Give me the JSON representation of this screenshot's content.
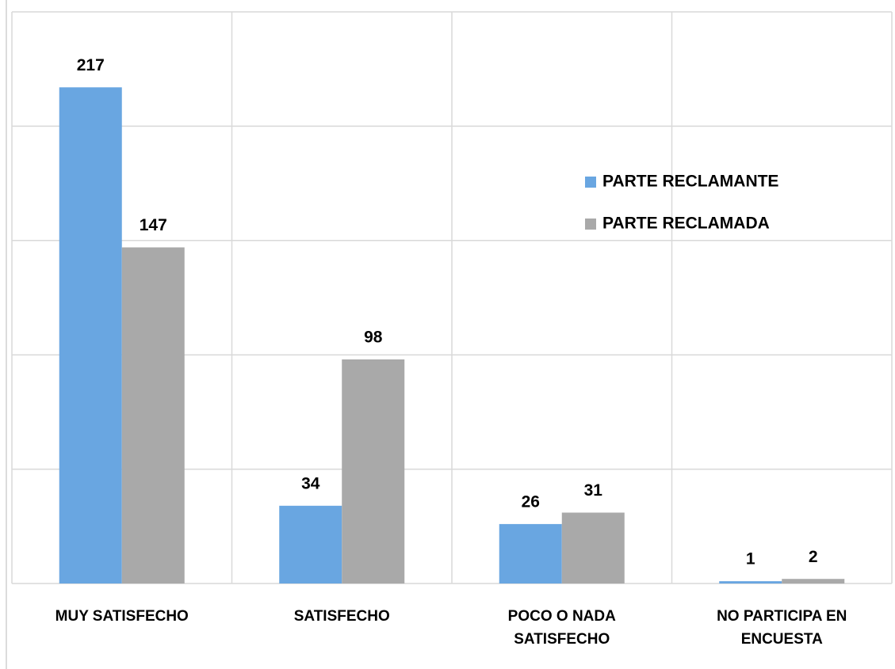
{
  "chart_data": {
    "type": "bar",
    "categories": [
      "MUY SATISFECHO",
      "SATISFECHO",
      "POCO O NADA SATISFECHO",
      "NO PARTICIPA EN ENCUESTA"
    ],
    "series": [
      {
        "name": "PARTE RECLAMANTE",
        "color": "#69a6e1",
        "values": [
          217,
          34,
          26,
          1
        ]
      },
      {
        "name": "PARTE RECLAMADA",
        "color": "#a9a9a9",
        "values": [
          147,
          98,
          31,
          2
        ]
      }
    ],
    "ylim": [
      0,
      250
    ],
    "yticks": [
      0,
      50,
      100,
      150,
      200,
      250
    ],
    "grid": true
  }
}
